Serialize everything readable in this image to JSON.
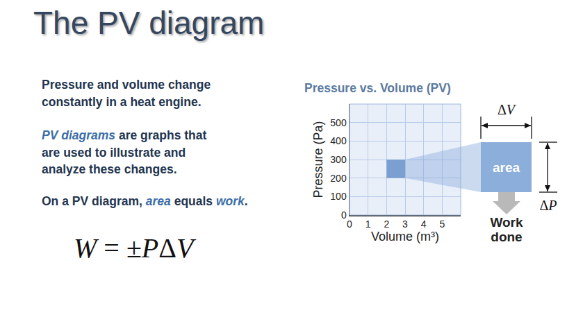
{
  "slide": {
    "title": "The PV diagram",
    "paragraphs": [
      [
        [
          "Pressure and volume change"
        ],
        [
          "constantly in a heat engine."
        ]
      ],
      [
        [
          {
            "text": "PV diagrams",
            "italic": true
          },
          " are graphs that"
        ],
        [
          "are used to illustrate and"
        ],
        [
          "analyze these changes."
        ]
      ],
      [
        [
          "On a PV diagram, ",
          {
            "text": "area",
            "italic": true
          },
          " equals ",
          {
            "text": "work",
            "italic": true
          },
          "."
        ]
      ]
    ],
    "formula": "W = ±PΔV"
  },
  "chart_data": {
    "type": "area",
    "title": "Pressure vs. Volume (PV)",
    "x_label": "Volume (m³)",
    "y_label": "Pressure (Pa)",
    "x": [
      2,
      3
    ],
    "values": [
      300,
      300
    ],
    "base": [
      200,
      200
    ],
    "color": "#7a9fd0",
    "xlim": [
      0,
      6
    ],
    "ylim": [
      0,
      600
    ],
    "xticks": [
      0,
      1,
      2,
      3,
      4,
      5
    ],
    "yticks": [
      0,
      100,
      200,
      300,
      400,
      500
    ],
    "grid": true,
    "callout": {
      "label": "area",
      "width_label": "ΔV",
      "height_label": "ΔP",
      "result": [
        "Work",
        "done"
      ]
    }
  }
}
